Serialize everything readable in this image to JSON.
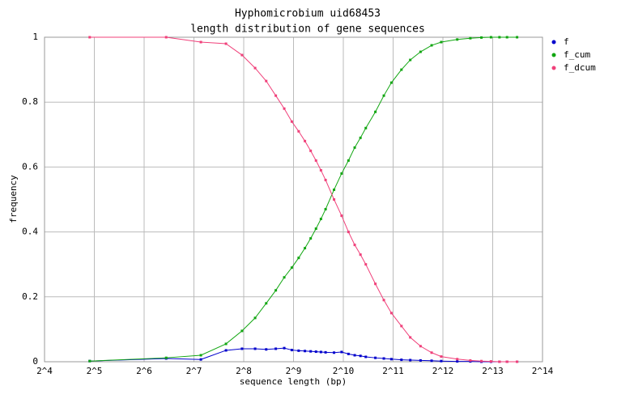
{
  "chart_data": {
    "type": "line",
    "title": "Hyphomicrobium uid68453",
    "subtitle": "length distribution of gene sequences",
    "x_label": "sequence length (bp)",
    "y_label": "frequency",
    "x_scale": "log2",
    "grid": true,
    "legend": "top-right",
    "xlim": [
      16,
      16384
    ],
    "xticks": [
      {
        "value": 16,
        "label": "2^4"
      },
      {
        "value": 32,
        "label": "2^5"
      },
      {
        "value": 64,
        "label": "2^6"
      },
      {
        "value": 128,
        "label": "2^7"
      },
      {
        "value": 256,
        "label": "2^8"
      },
      {
        "value": 512,
        "label": "2^9"
      },
      {
        "value": 1024,
        "label": "2^10"
      },
      {
        "value": 2048,
        "label": "2^11"
      },
      {
        "value": 4096,
        "label": "2^12"
      },
      {
        "value": 8192,
        "label": "2^13"
      },
      {
        "value": 16384,
        "label": "2^14"
      }
    ],
    "ylim": [
      0,
      1
    ],
    "yticks": [
      0,
      0.2,
      0.4,
      0.6,
      0.8,
      1
    ],
    "x": [
      30,
      87,
      141,
      200,
      250,
      300,
      350,
      400,
      450,
      500,
      550,
      600,
      650,
      700,
      750,
      800,
      900,
      1000,
      1100,
      1200,
      1300,
      1400,
      1600,
      1800,
      2000,
      2300,
      2600,
      3000,
      3500,
      4000,
      5000,
      6000,
      7000,
      8000,
      9000,
      10000,
      11500
    ],
    "series": [
      {
        "name": "f",
        "color": "#0000cc",
        "values": [
          0.002,
          0.01,
          0.007,
          0.035,
          0.04,
          0.04,
          0.038,
          0.04,
          0.042,
          0.036,
          0.034,
          0.033,
          0.032,
          0.031,
          0.03,
          0.029,
          0.028,
          0.03,
          0.024,
          0.02,
          0.018,
          0.015,
          0.012,
          0.01,
          0.008,
          0.006,
          0.005,
          0.004,
          0.003,
          0.002,
          0.001,
          0.001,
          0,
          0,
          0,
          0,
          0
        ]
      },
      {
        "name": "f_cum",
        "color": "#11a611",
        "values": [
          0.002,
          0.012,
          0.02,
          0.055,
          0.095,
          0.135,
          0.18,
          0.22,
          0.26,
          0.29,
          0.32,
          0.35,
          0.38,
          0.41,
          0.44,
          0.47,
          0.53,
          0.58,
          0.62,
          0.66,
          0.69,
          0.72,
          0.77,
          0.82,
          0.86,
          0.9,
          0.93,
          0.955,
          0.975,
          0.985,
          0.993,
          0.997,
          0.999,
          1,
          1,
          1,
          1
        ]
      },
      {
        "name": "f_dcum",
        "color": "#f0407a",
        "values": [
          1,
          1,
          0.985,
          0.98,
          0.945,
          0.905,
          0.865,
          0.82,
          0.78,
          0.74,
          0.71,
          0.68,
          0.65,
          0.62,
          0.59,
          0.56,
          0.5,
          0.45,
          0.4,
          0.36,
          0.33,
          0.3,
          0.24,
          0.19,
          0.15,
          0.11,
          0.075,
          0.048,
          0.028,
          0.016,
          0.008,
          0.004,
          0.002,
          0.001,
          0,
          0,
          0
        ]
      }
    ]
  }
}
